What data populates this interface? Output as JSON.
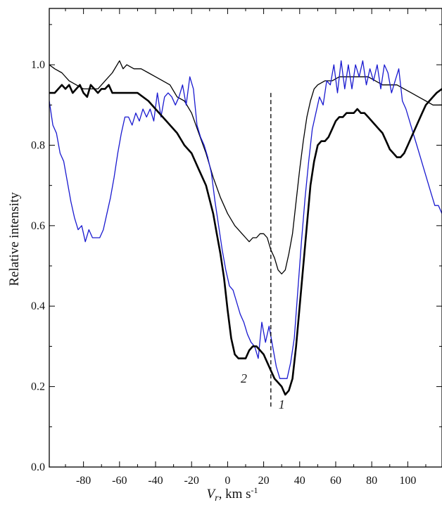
{
  "chart_data": {
    "type": "line",
    "xlabel": "V_r, km s^-1",
    "ylabel": "Relative intensity",
    "xlim": [
      -99,
      119
    ],
    "ylim": [
      0.0,
      1.14
    ],
    "x_ticks": [
      -80,
      -60,
      -40,
      -20,
      0,
      20,
      40,
      60,
      80,
      100
    ],
    "y_ticks": [
      0.0,
      0.2,
      0.4,
      0.6,
      0.8,
      1.0
    ],
    "grid": false,
    "legend": "none",
    "reference_line": {
      "x": 24,
      "y_from": 0.15,
      "y_to": 0.93,
      "style": "dashed"
    },
    "curve_labels": [
      {
        "text": "1",
        "x": 30,
        "y": 0.145
      },
      {
        "text": "2",
        "x": 9,
        "y": 0.21
      }
    ],
    "series": [
      {
        "name": "",
        "color": "#000000",
        "width": 2.6,
        "points": [
          [
            -99,
            0.93
          ],
          [
            -96,
            0.93
          ],
          [
            -92,
            0.95
          ],
          [
            -90,
            0.94
          ],
          [
            -88,
            0.95
          ],
          [
            -86,
            0.93
          ],
          [
            -84,
            0.94
          ],
          [
            -82,
            0.95
          ],
          [
            -80,
            0.93
          ],
          [
            -78,
            0.92
          ],
          [
            -76,
            0.95
          ],
          [
            -74,
            0.94
          ],
          [
            -72,
            0.93
          ],
          [
            -70,
            0.94
          ],
          [
            -68,
            0.94
          ],
          [
            -66,
            0.95
          ],
          [
            -64,
            0.93
          ],
          [
            -60,
            0.93
          ],
          [
            -50,
            0.93
          ],
          [
            -44,
            0.91
          ],
          [
            -40,
            0.89
          ],
          [
            -34,
            0.86
          ],
          [
            -28,
            0.83
          ],
          [
            -24,
            0.8
          ],
          [
            -20,
            0.78
          ],
          [
            -16,
            0.74
          ],
          [
            -12,
            0.7
          ],
          [
            -8,
            0.63
          ],
          [
            -6,
            0.58
          ],
          [
            -4,
            0.53
          ],
          [
            -2,
            0.47
          ],
          [
            0,
            0.39
          ],
          [
            2,
            0.32
          ],
          [
            4,
            0.28
          ],
          [
            6,
            0.27
          ],
          [
            8,
            0.27
          ],
          [
            10,
            0.27
          ],
          [
            12,
            0.29
          ],
          [
            14,
            0.3
          ],
          [
            16,
            0.3
          ],
          [
            18,
            0.29
          ],
          [
            20,
            0.28
          ],
          [
            22,
            0.26
          ],
          [
            24,
            0.24
          ],
          [
            26,
            0.22
          ],
          [
            28,
            0.21
          ],
          [
            30,
            0.2
          ],
          [
            32,
            0.18
          ],
          [
            34,
            0.19
          ],
          [
            36,
            0.22
          ],
          [
            38,
            0.3
          ],
          [
            40,
            0.4
          ],
          [
            42,
            0.5
          ],
          [
            44,
            0.6
          ],
          [
            46,
            0.7
          ],
          [
            48,
            0.76
          ],
          [
            50,
            0.8
          ],
          [
            52,
            0.81
          ],
          [
            54,
            0.81
          ],
          [
            56,
            0.82
          ],
          [
            58,
            0.84
          ],
          [
            60,
            0.86
          ],
          [
            62,
            0.87
          ],
          [
            64,
            0.87
          ],
          [
            66,
            0.88
          ],
          [
            68,
            0.88
          ],
          [
            70,
            0.88
          ],
          [
            72,
            0.89
          ],
          [
            74,
            0.88
          ],
          [
            76,
            0.88
          ],
          [
            78,
            0.87
          ],
          [
            80,
            0.86
          ],
          [
            82,
            0.85
          ],
          [
            84,
            0.84
          ],
          [
            86,
            0.83
          ],
          [
            88,
            0.81
          ],
          [
            90,
            0.79
          ],
          [
            92,
            0.78
          ],
          [
            94,
            0.77
          ],
          [
            96,
            0.77
          ],
          [
            98,
            0.78
          ],
          [
            100,
            0.8
          ],
          [
            102,
            0.82
          ],
          [
            104,
            0.84
          ],
          [
            106,
            0.86
          ],
          [
            108,
            0.88
          ],
          [
            110,
            0.9
          ],
          [
            112,
            0.91
          ],
          [
            114,
            0.92
          ],
          [
            116,
            0.93
          ],
          [
            119,
            0.94
          ]
        ]
      },
      {
        "name": "",
        "color": "#000000",
        "width": 1.3,
        "points": [
          [
            -99,
            1.0
          ],
          [
            -96,
            0.99
          ],
          [
            -92,
            0.98
          ],
          [
            -88,
            0.96
          ],
          [
            -84,
            0.95
          ],
          [
            -80,
            0.94
          ],
          [
            -76,
            0.94
          ],
          [
            -72,
            0.94
          ],
          [
            -68,
            0.96
          ],
          [
            -64,
            0.98
          ],
          [
            -60,
            1.01
          ],
          [
            -58,
            0.99
          ],
          [
            -56,
            1.0
          ],
          [
            -52,
            0.99
          ],
          [
            -48,
            0.99
          ],
          [
            -44,
            0.98
          ],
          [
            -40,
            0.97
          ],
          [
            -36,
            0.96
          ],
          [
            -32,
            0.95
          ],
          [
            -28,
            0.92
          ],
          [
            -24,
            0.91
          ],
          [
            -20,
            0.88
          ],
          [
            -16,
            0.83
          ],
          [
            -12,
            0.78
          ],
          [
            -8,
            0.72
          ],
          [
            -4,
            0.67
          ],
          [
            0,
            0.63
          ],
          [
            4,
            0.6
          ],
          [
            8,
            0.58
          ],
          [
            10,
            0.57
          ],
          [
            12,
            0.56
          ],
          [
            14,
            0.57
          ],
          [
            16,
            0.57
          ],
          [
            18,
            0.58
          ],
          [
            20,
            0.58
          ],
          [
            22,
            0.57
          ],
          [
            24,
            0.54
          ],
          [
            26,
            0.52
          ],
          [
            28,
            0.49
          ],
          [
            30,
            0.48
          ],
          [
            32,
            0.49
          ],
          [
            34,
            0.53
          ],
          [
            36,
            0.58
          ],
          [
            38,
            0.66
          ],
          [
            40,
            0.74
          ],
          [
            42,
            0.81
          ],
          [
            44,
            0.87
          ],
          [
            46,
            0.91
          ],
          [
            48,
            0.94
          ],
          [
            50,
            0.95
          ],
          [
            54,
            0.96
          ],
          [
            58,
            0.96
          ],
          [
            62,
            0.97
          ],
          [
            66,
            0.97
          ],
          [
            70,
            0.97
          ],
          [
            74,
            0.97
          ],
          [
            78,
            0.97
          ],
          [
            82,
            0.96
          ],
          [
            86,
            0.95
          ],
          [
            90,
            0.95
          ],
          [
            94,
            0.95
          ],
          [
            98,
            0.94
          ],
          [
            102,
            0.93
          ],
          [
            106,
            0.92
          ],
          [
            110,
            0.91
          ],
          [
            114,
            0.9
          ],
          [
            119,
            0.9
          ]
        ]
      },
      {
        "name": "",
        "color": "#1a1ad0",
        "width": 1.3,
        "points": [
          [
            -99,
            0.91
          ],
          [
            -97,
            0.85
          ],
          [
            -95,
            0.83
          ],
          [
            -93,
            0.78
          ],
          [
            -91,
            0.76
          ],
          [
            -89,
            0.71
          ],
          [
            -87,
            0.66
          ],
          [
            -85,
            0.62
          ],
          [
            -83,
            0.59
          ],
          [
            -81,
            0.6
          ],
          [
            -79,
            0.56
          ],
          [
            -77,
            0.59
          ],
          [
            -75,
            0.57
          ],
          [
            -73,
            0.57
          ],
          [
            -71,
            0.57
          ],
          [
            -69,
            0.59
          ],
          [
            -67,
            0.63
          ],
          [
            -65,
            0.67
          ],
          [
            -63,
            0.72
          ],
          [
            -61,
            0.78
          ],
          [
            -59,
            0.83
          ],
          [
            -57,
            0.87
          ],
          [
            -55,
            0.87
          ],
          [
            -53,
            0.85
          ],
          [
            -51,
            0.88
          ],
          [
            -49,
            0.86
          ],
          [
            -47,
            0.89
          ],
          [
            -45,
            0.87
          ],
          [
            -43,
            0.89
          ],
          [
            -41,
            0.86
          ],
          [
            -39,
            0.93
          ],
          [
            -37,
            0.87
          ],
          [
            -35,
            0.92
          ],
          [
            -33,
            0.93
          ],
          [
            -31,
            0.92
          ],
          [
            -29,
            0.9
          ],
          [
            -27,
            0.92
          ],
          [
            -25,
            0.95
          ],
          [
            -23,
            0.9
          ],
          [
            -21,
            0.97
          ],
          [
            -19,
            0.94
          ],
          [
            -17,
            0.85
          ],
          [
            -15,
            0.82
          ],
          [
            -13,
            0.8
          ],
          [
            -11,
            0.77
          ],
          [
            -9,
            0.73
          ],
          [
            -7,
            0.66
          ],
          [
            -5,
            0.6
          ],
          [
            -3,
            0.54
          ],
          [
            -1,
            0.49
          ],
          [
            1,
            0.45
          ],
          [
            3,
            0.44
          ],
          [
            5,
            0.41
          ],
          [
            7,
            0.38
          ],
          [
            9,
            0.36
          ],
          [
            11,
            0.33
          ],
          [
            13,
            0.31
          ],
          [
            15,
            0.3
          ],
          [
            17,
            0.27
          ],
          [
            19,
            0.36
          ],
          [
            21,
            0.31
          ],
          [
            23,
            0.35
          ],
          [
            25,
            0.3
          ],
          [
            27,
            0.25
          ],
          [
            29,
            0.22
          ],
          [
            31,
            0.22
          ],
          [
            33,
            0.22
          ],
          [
            35,
            0.26
          ],
          [
            37,
            0.32
          ],
          [
            39,
            0.44
          ],
          [
            41,
            0.56
          ],
          [
            43,
            0.67
          ],
          [
            45,
            0.76
          ],
          [
            47,
            0.84
          ],
          [
            49,
            0.88
          ],
          [
            51,
            0.92
          ],
          [
            53,
            0.9
          ],
          [
            55,
            0.96
          ],
          [
            57,
            0.95
          ],
          [
            59,
            1.0
          ],
          [
            61,
            0.93
          ],
          [
            63,
            1.01
          ],
          [
            65,
            0.94
          ],
          [
            67,
            1.0
          ],
          [
            69,
            0.94
          ],
          [
            71,
            1.0
          ],
          [
            73,
            0.97
          ],
          [
            75,
            1.01
          ],
          [
            77,
            0.95
          ],
          [
            79,
            0.99
          ],
          [
            81,
            0.96
          ],
          [
            83,
            1.0
          ],
          [
            85,
            0.94
          ],
          [
            87,
            1.0
          ],
          [
            89,
            0.98
          ],
          [
            91,
            0.93
          ],
          [
            93,
            0.96
          ],
          [
            95,
            0.99
          ],
          [
            97,
            0.91
          ],
          [
            99,
            0.89
          ],
          [
            101,
            0.86
          ],
          [
            103,
            0.83
          ],
          [
            105,
            0.8
          ],
          [
            107,
            0.77
          ],
          [
            109,
            0.74
          ],
          [
            111,
            0.71
          ],
          [
            113,
            0.68
          ],
          [
            115,
            0.65
          ],
          [
            117,
            0.65
          ],
          [
            119,
            0.63
          ]
        ]
      }
    ]
  }
}
